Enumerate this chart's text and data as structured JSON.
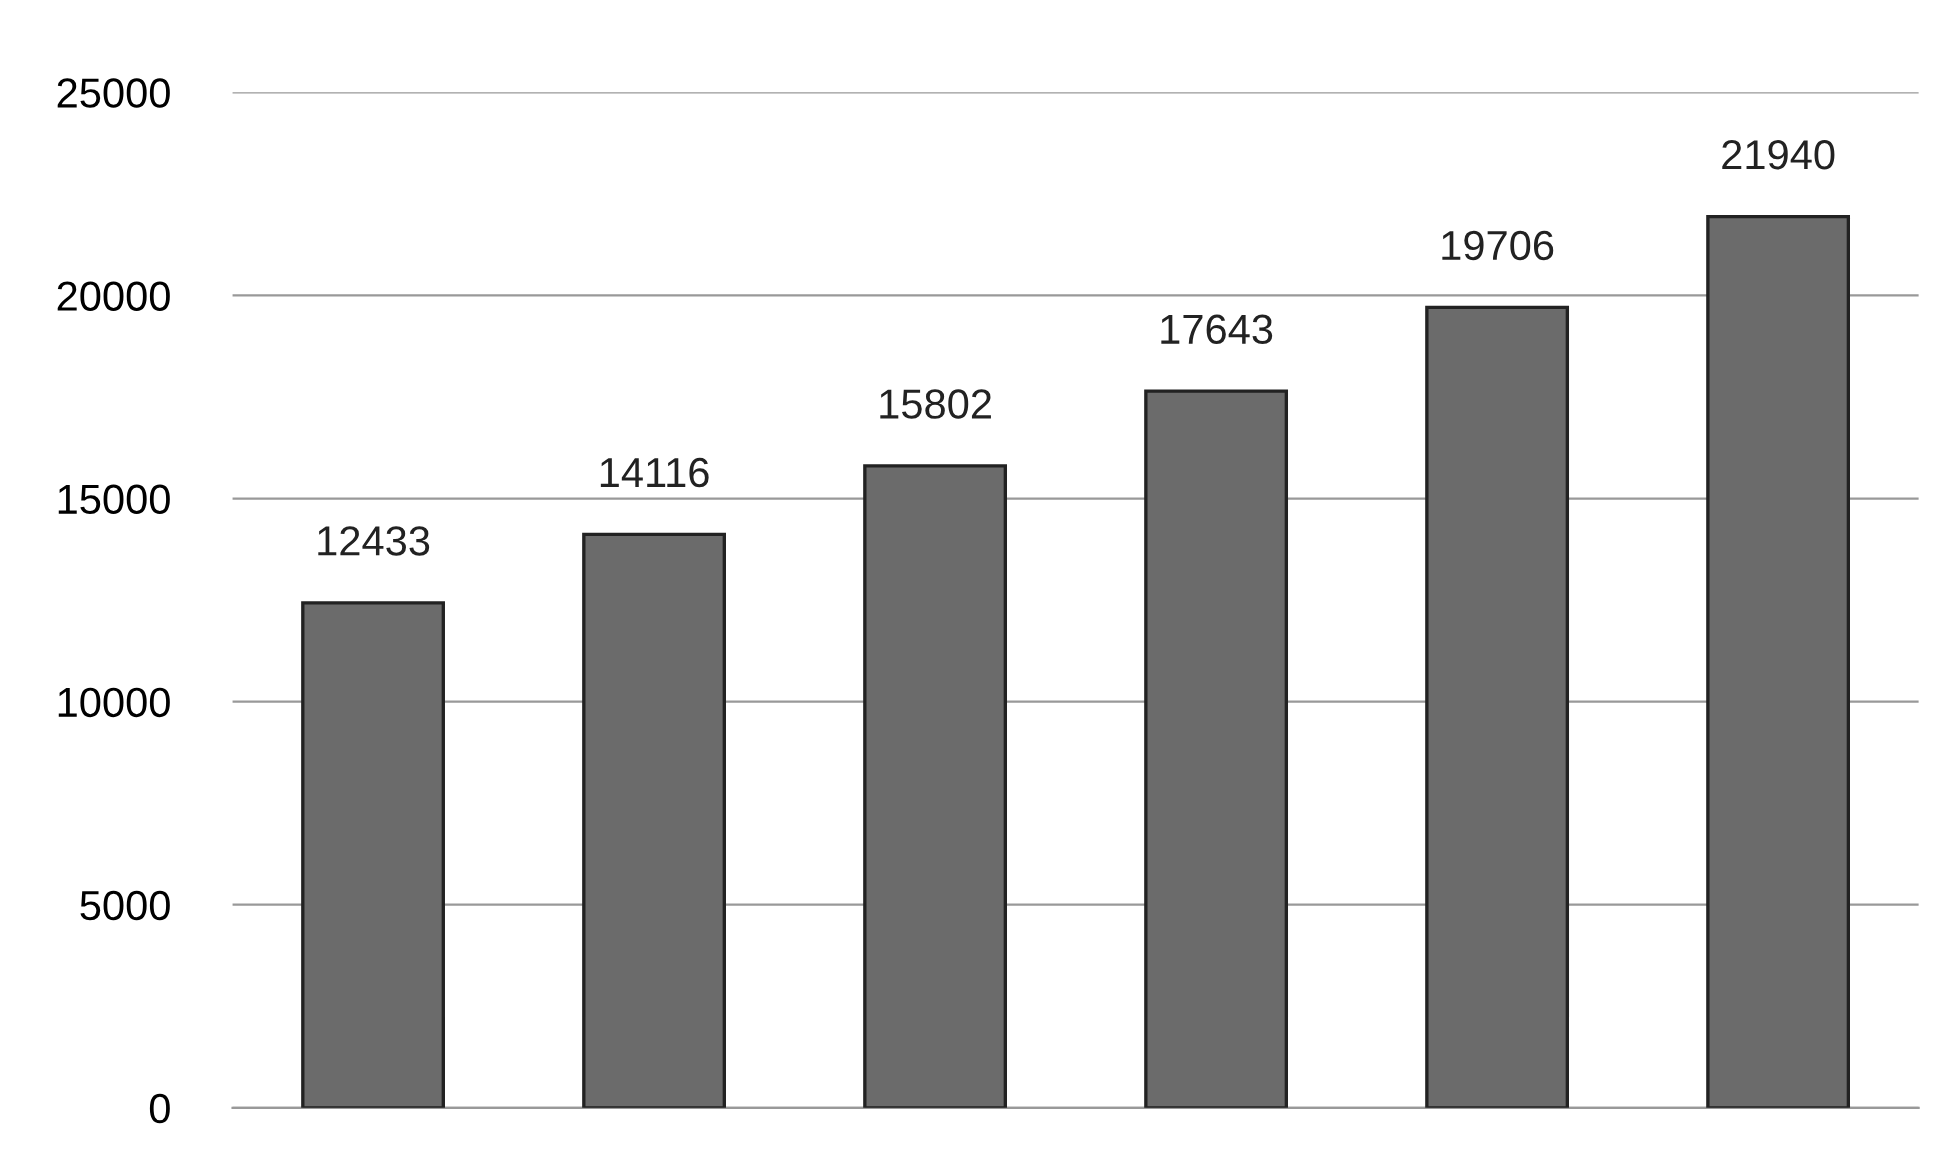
{
  "chart_data": {
    "type": "bar",
    "categories": [
      null,
      null,
      null,
      null,
      null,
      null
    ],
    "values": [
      12433,
      14116,
      15802,
      17643,
      19706,
      21940
    ],
    "color": "#6b6b6b",
    "ylim": [
      0,
      25000
    ],
    "yticks": [
      0,
      5000,
      10000,
      15000,
      20000,
      25000
    ],
    "grid": "y",
    "data_labels": true
  }
}
